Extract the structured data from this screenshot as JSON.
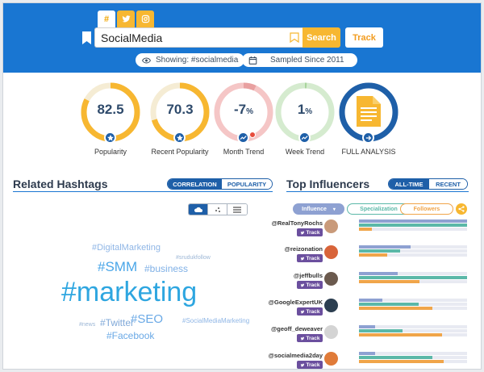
{
  "header": {
    "tabs": [
      "#",
      "twitter-icon",
      "instagram-icon"
    ],
    "search": {
      "value": "SocialMedia"
    },
    "search_label": "Search",
    "track_label": "Track",
    "showing": "Showing: #socialmedia",
    "sampled": "Sampled Since 2011"
  },
  "gauges": [
    {
      "value": "82.5",
      "unit": "",
      "label": "Popularity",
      "level": 0.825,
      "color": "#f7b731"
    },
    {
      "value": "70.3",
      "unit": "",
      "label": "Recent Popularity",
      "level": 0.703,
      "color": "#f7b731"
    },
    {
      "value": "-7",
      "unit": "%",
      "label": "Month Trend",
      "level": 0.07,
      "color": "#f5c6c6"
    },
    {
      "value": "1",
      "unit": "%",
      "label": "Week Trend",
      "level": 0.01,
      "color": "#cfe6c8"
    },
    {
      "value": "",
      "unit": "",
      "label": "FULL ANALYSIS",
      "level": 1.0,
      "color": "#1e5fa8"
    }
  ],
  "related": {
    "title": "Related Hashtags",
    "toggle": [
      "CORRELATION",
      "POPULARITY"
    ],
    "hashtags": [
      {
        "text": "#DigitalMarketing",
        "color": "#8fb6e6"
      },
      {
        "text": "#srudukfollow",
        "color": "#9db7d6"
      },
      {
        "text": "#SMM",
        "color": "#4aa6e8"
      },
      {
        "text": "#business",
        "color": "#7fb0e6"
      },
      {
        "text": "#marketing",
        "color": "#2ea6e0"
      },
      {
        "text": "#Twitter",
        "color": "#7fa8d8"
      },
      {
        "text": "#SEO",
        "color": "#6aa9e6"
      },
      {
        "text": "#news",
        "color": "#9db7d6"
      },
      {
        "text": "#SocialMediaMarketing",
        "color": "#8fb6e6"
      },
      {
        "text": "#Facebook",
        "color": "#6aa9e6"
      }
    ]
  },
  "influencers": {
    "title": "Top Influencers",
    "toggle": [
      "ALL-TIME",
      "RECENT"
    ],
    "filters": [
      "Influence",
      "Specialization",
      "Followers"
    ],
    "track_label": "Track",
    "rows": [
      {
        "handle": "@RealTonyRochs",
        "influence": 1.0,
        "specialization": 1.0,
        "followers": 0.12,
        "avatar": "#c99a7a"
      },
      {
        "handle": "@reizonation",
        "influence": 0.48,
        "specialization": 0.38,
        "followers": 0.26,
        "avatar": "#d8643a"
      },
      {
        "handle": "@jeffbulls",
        "influence": 0.36,
        "specialization": 1.0,
        "followers": 0.56,
        "avatar": "#6b5a4e"
      },
      {
        "handle": "@GoogleExpertUK",
        "influence": 0.22,
        "specialization": 0.55,
        "followers": 0.68,
        "avatar": "#2c3e50"
      },
      {
        "handle": "@geoff_deweaver",
        "influence": 0.15,
        "specialization": 0.4,
        "followers": 0.77,
        "avatar": "#d4d4d4"
      },
      {
        "handle": "@socialmedia2day",
        "influence": 0.15,
        "specialization": 0.68,
        "followers": 0.78,
        "avatar": "#e07b39"
      }
    ]
  },
  "colors": {
    "influence": "#8ea1d2",
    "specialization": "#5bb8a8",
    "followers": "#f0a54a",
    "brand": "#1976d2",
    "accent": "#f7b731"
  }
}
